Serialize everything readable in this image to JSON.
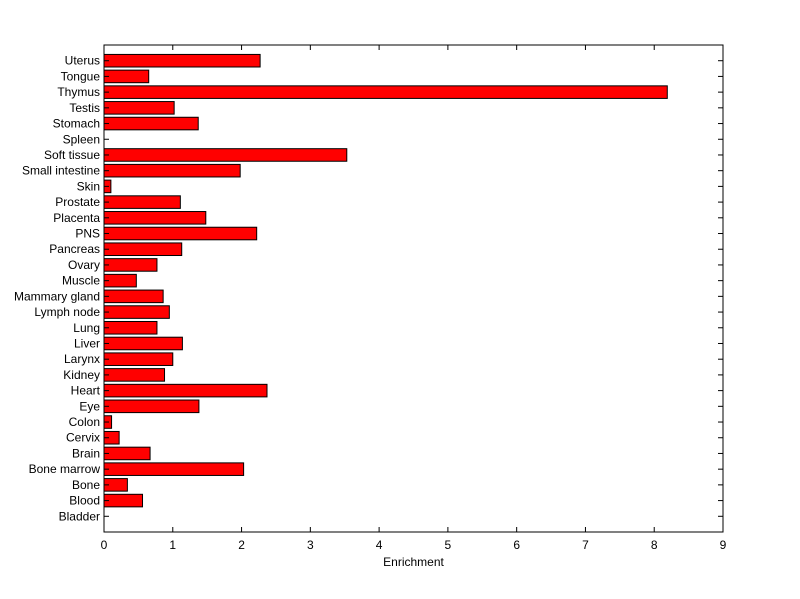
{
  "chart_data": {
    "type": "bar",
    "orientation": "horizontal",
    "categories": [
      "Uterus",
      "Tongue",
      "Thymus",
      "Testis",
      "Stomach",
      "Spleen",
      "Soft tissue",
      "Small intestine",
      "Skin",
      "Prostate",
      "Placenta",
      "PNS",
      "Pancreas",
      "Ovary",
      "Muscle",
      "Mammary gland",
      "Lymph node",
      "Lung",
      "Liver",
      "Larynx",
      "Kidney",
      "Heart",
      "Eye",
      "Colon",
      "Cervix",
      "Brain",
      "Bone marrow",
      "Bone",
      "Blood",
      "Bladder"
    ],
    "values": [
      2.27,
      0.65,
      8.19,
      1.02,
      1.37,
      0.0,
      3.53,
      1.98,
      0.1,
      1.11,
      1.48,
      2.22,
      1.13,
      0.77,
      0.47,
      0.86,
      0.95,
      0.77,
      1.14,
      1.0,
      0.88,
      2.37,
      1.38,
      0.11,
      0.22,
      0.67,
      2.03,
      0.34,
      0.56,
      0.0
    ],
    "xlabel": "Enrichment",
    "ylabel": "",
    "title": "",
    "xlim": [
      0,
      9
    ],
    "xticks": [
      "0",
      "1",
      "2",
      "3",
      "4",
      "5",
      "6",
      "7",
      "8",
      "9"
    ],
    "grid": false,
    "bar_color": "#ff0000",
    "edge_color": "#000000"
  }
}
